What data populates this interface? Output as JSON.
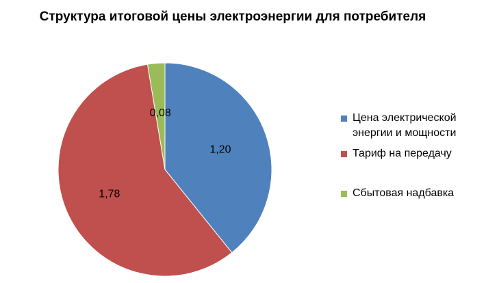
{
  "chart_data": {
    "type": "pie",
    "title": "Структура итоговой цены электроэнергии для потребителя",
    "categories": [
      "Цена электрической энергии и мощности",
      "Тариф на передачу",
      "Сбытовая надбавка"
    ],
    "values": [
      1.2,
      1.78,
      0.08
    ],
    "data_labels": [
      "1,20",
      "1,78",
      "0,08"
    ],
    "colors": [
      "#4F81BD",
      "#C0504D",
      "#9BBB59"
    ],
    "start_angle": "12 o'clock",
    "direction": "clockwise",
    "legend_position": "right"
  }
}
